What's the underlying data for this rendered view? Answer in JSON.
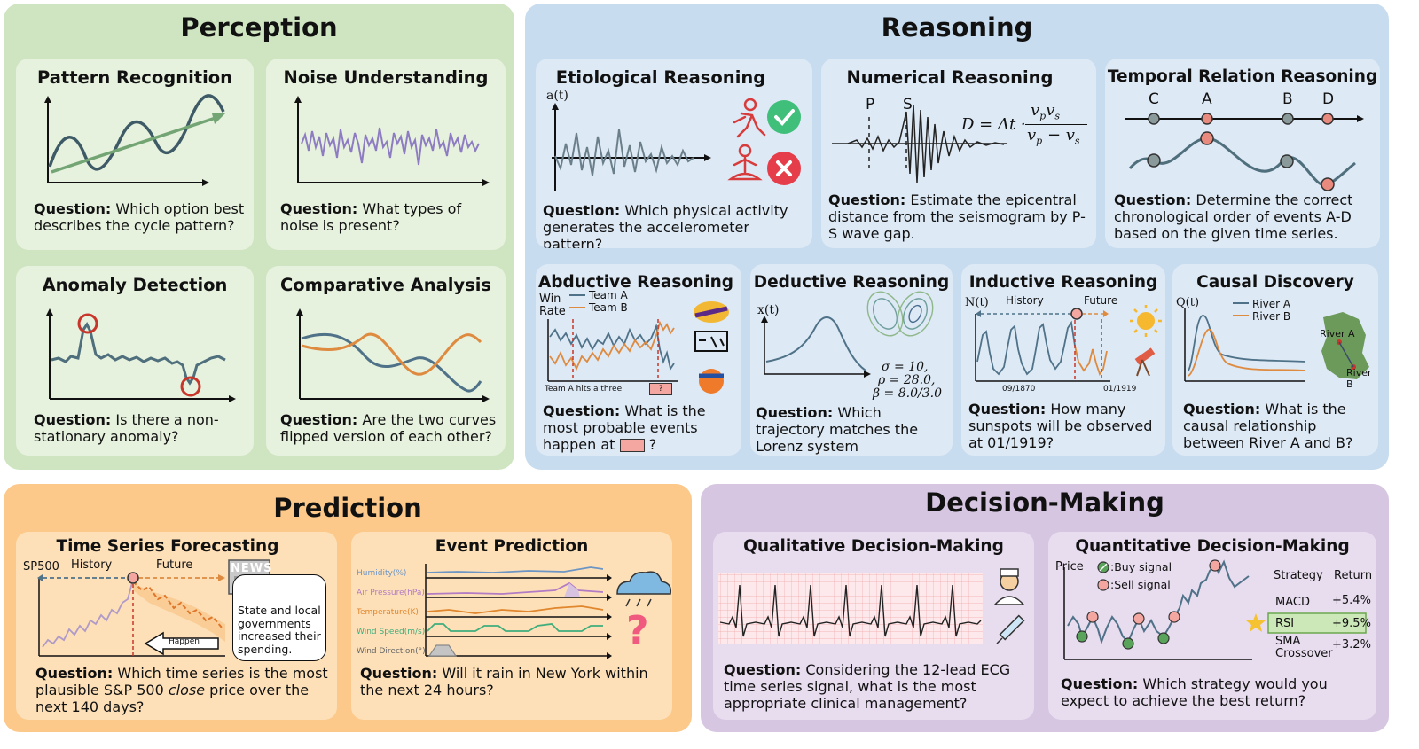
{
  "sections": {
    "perception": {
      "title": "Perception",
      "color": "#cfe5c1"
    },
    "reasoning": {
      "title": "Reasoning",
      "color": "#c7dcef"
    },
    "prediction": {
      "title": "Prediction",
      "color": "#fcc98a"
    },
    "decision": {
      "title": "Decision-Making",
      "color": "#d6c6e2"
    }
  },
  "cards": {
    "pattern": {
      "title": "Pattern Recognition",
      "q_label": "Question:",
      "q_text": "Which option best describes the cycle pattern?"
    },
    "noise": {
      "title": "Noise Understanding",
      "q_label": "Question:",
      "q_text": "What types of noise is present?"
    },
    "anomaly": {
      "title": "Anomaly Detection",
      "q_label": "Question:",
      "q_text": "Is there a non-stationary anomaly?"
    },
    "comparative": {
      "title": "Comparative Analysis",
      "q_label": "Question:",
      "q_text": "Are the two curves flipped version of each other?"
    },
    "etiological": {
      "title": "Etiological Reasoning",
      "q_label": "Question:",
      "q_text": "Which physical activity generates the accelerometer pattern?",
      "axis": "a(t)"
    },
    "numerical": {
      "title": "Numerical Reasoning",
      "q_label": "Question:",
      "q_text": "Estimate the epicentral distance from the seismogram by P-S wave gap.",
      "p_label": "P",
      "s_label": "S",
      "formula_left": "D = Δt ·",
      "formula_num": "v",
      "formula_num_sub1": "p",
      "formula_num2": "v",
      "formula_num_sub2": "s",
      "formula_den": "v",
      "formula_den_sub1": "p",
      "formula_den_mid": " − v",
      "formula_den_sub2": "s"
    },
    "temporal": {
      "title": "Temporal Relation Reasoning",
      "q_label": "Question:",
      "q_text": "Determine the correct chronological order of events A-D based on the given time series.",
      "events": [
        "C",
        "A",
        "B",
        "D"
      ]
    },
    "abductive": {
      "title": "Abductive Reasoning",
      "q_label": "Question:",
      "q_text": "What is the most probable events happen at",
      "q_end": "?",
      "ylabel1": "Win",
      "ylabel2": "Rate",
      "legend_a": "Team A",
      "legend_b": "Team B",
      "note": "Team A hits a three",
      "marker": "?"
    },
    "deductive": {
      "title": "Deductive Reasoning",
      "q_label": "Question:",
      "q_text": "Which trajectory matches the Lorenz system parameters?",
      "axis": "x(t)",
      "p1": "σ = 10,",
      "p2": "ρ = 28.0,",
      "p3": "β = 8.0/3.0"
    },
    "inductive": {
      "title": "Inductive Reasoning",
      "q_label": "Question:",
      "q_text": "How many sunspots will be observed at 01/1919?",
      "axis": "N(t)",
      "history": "History",
      "future": "Future",
      "date1": "09/1870",
      "date2": "01/1919"
    },
    "causal": {
      "title": "Causal Discovery",
      "q_label": "Question:",
      "q_text": "What is the causal relationship between River A and B?",
      "axis": "Q(t)",
      "legend_a": "River A",
      "legend_b": "River B",
      "map_a": "River A",
      "map_b": "River B"
    },
    "forecast": {
      "title": "Time Series Forecasting",
      "q_label": "Question:",
      "q_text_1": "Which time series is the most plausible S&P 500",
      "q_em": "close",
      "q_text_2": "price over the next 140 days?",
      "axis": "SP500",
      "history": "History",
      "future": "Future",
      "news_logo": "NEWS",
      "news_text": "State and local governments increased their spending.",
      "happen": "Happen"
    },
    "event": {
      "title": "Event Prediction",
      "q_label": "Question:",
      "q_text": "Will it rain in New York within the next 24 hours?",
      "rows": [
        "Humidity(%)",
        "Air Pressure(hPa)",
        "Temperature(K)",
        "Wind Speed(m/s)",
        "Wind Direction(°)"
      ],
      "question_mark": "?"
    },
    "qualitative": {
      "title": "Qualitative Decision-Making",
      "q_label": "Question:",
      "q_text": "Considering the 12-lead ECG time series signal, what is the most appropriate clinical management?"
    },
    "quantitative": {
      "title": "Quantitative Decision-Making",
      "q_label": "Question:",
      "q_text": "Which strategy would you expect to achieve the best return?",
      "axis": "Price",
      "buy": ":Buy signal",
      "sell": ":Sell signal",
      "col1": "Strategy",
      "col2": "Return",
      "rows": [
        {
          "name": "MACD",
          "ret": "+5.4%"
        },
        {
          "name": "RSI",
          "ret": "+9.5%"
        },
        {
          "name": "SMA",
          "name2": "Crossover",
          "ret": "+3.2%"
        }
      ]
    }
  }
}
